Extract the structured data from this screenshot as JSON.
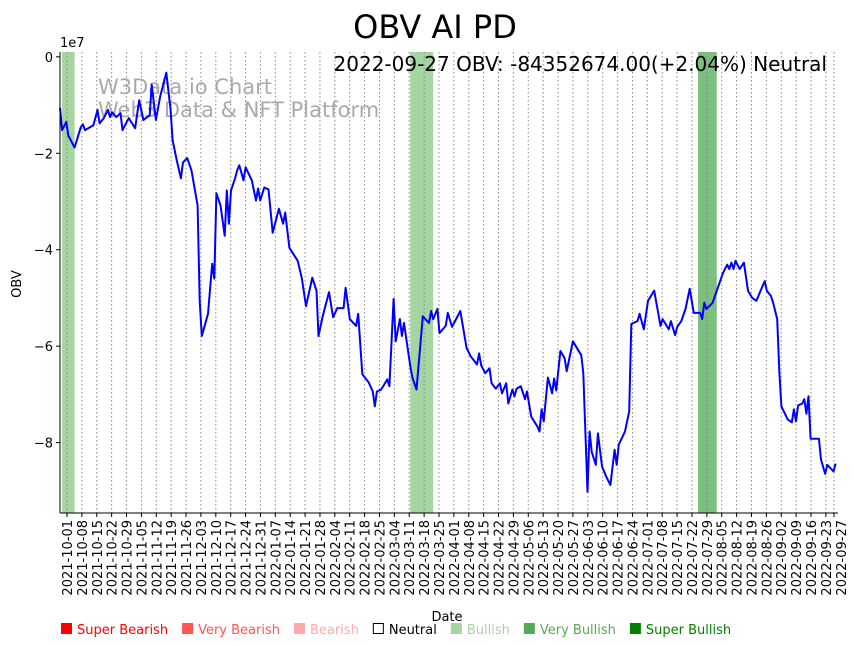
{
  "chart_data": {
    "type": "line",
    "title": "OBV AI PD",
    "annotation": "2022-09-27 OBV: -84352674.00(+2.04%) Neutral",
    "watermark": [
      "W3Data.io Chart",
      "Web3 Data & NFT Platform"
    ],
    "xlabel": "Date",
    "ylabel": "OBV",
    "y_multiplier_label": "1e7",
    "y_unit": "1e7",
    "ylim": [
      -9.46,
      0.1
    ],
    "xlim_days": [
      0,
      372
    ],
    "grid": "vertical dotted",
    "x_start_note": "x values are days from series start (~2021-09-27)",
    "yticks": [
      {
        "value": 0,
        "label": "0"
      },
      {
        "value": -2,
        "label": "−2"
      },
      {
        "value": -4,
        "label": "−4"
      },
      {
        "value": -6,
        "label": "−6"
      },
      {
        "value": -8,
        "label": "−8"
      }
    ],
    "xticks": [
      "2021-10-01",
      "2021-10-08",
      "2021-10-15",
      "2021-10-22",
      "2021-10-29",
      "2021-11-05",
      "2021-11-12",
      "2021-11-19",
      "2021-11-26",
      "2021-12-03",
      "2021-12-10",
      "2021-12-17",
      "2021-12-24",
      "2021-12-31",
      "2022-01-07",
      "2022-01-14",
      "2022-01-21",
      "2022-01-28",
      "2022-02-04",
      "2022-02-11",
      "2022-02-18",
      "2022-02-25",
      "2022-03-04",
      "2022-03-11",
      "2022-03-18",
      "2022-03-25",
      "2022-04-01",
      "2022-04-08",
      "2022-04-15",
      "2022-04-22",
      "2022-04-29",
      "2022-05-06",
      "2022-05-13",
      "2022-05-20",
      "2022-05-27",
      "2022-06-03",
      "2022-06-10",
      "2022-06-17",
      "2022-06-24",
      "2022-07-01",
      "2022-07-08",
      "2022-07-15",
      "2022-07-22",
      "2022-07-29",
      "2022-08-05",
      "2022-08-12",
      "2022-08-19",
      "2022-08-26",
      "2022-09-02",
      "2022-09-09",
      "2022-09-16",
      "2022-09-23",
      "2022-09-27"
    ],
    "series": [
      {
        "name": "OBV",
        "color": "#0000ff",
        "points": [
          [
            0,
            -1.06
          ],
          [
            1,
            -1.52
          ],
          [
            3,
            -1.35
          ],
          [
            4,
            -1.63
          ],
          [
            7,
            -1.88
          ],
          [
            10,
            -1.46
          ],
          [
            11,
            -1.4
          ],
          [
            12,
            -1.52
          ],
          [
            16,
            -1.42
          ],
          [
            18,
            -1.1
          ],
          [
            19,
            -1.38
          ],
          [
            21,
            -1.27
          ],
          [
            23,
            -1.1
          ],
          [
            24,
            -1.25
          ],
          [
            25,
            -1.15
          ],
          [
            27,
            -1.25
          ],
          [
            29,
            -1.17
          ],
          [
            30,
            -1.52
          ],
          [
            33,
            -1.27
          ],
          [
            36,
            -1.48
          ],
          [
            38,
            -0.9
          ],
          [
            40,
            -1.31
          ],
          [
            43,
            -1.21
          ],
          [
            44,
            -0.58
          ],
          [
            46,
            -1.31
          ],
          [
            48,
            -0.83
          ],
          [
            51,
            -0.33
          ],
          [
            53,
            -1.08
          ],
          [
            54,
            -1.73
          ],
          [
            56,
            -2.15
          ],
          [
            58,
            -2.52
          ],
          [
            59,
            -2.19
          ],
          [
            61,
            -2.1
          ],
          [
            63,
            -2.35
          ],
          [
            66,
            -3.08
          ],
          [
            67,
            -5.06
          ],
          [
            68,
            -5.79
          ],
          [
            71,
            -5.33
          ],
          [
            73,
            -4.29
          ],
          [
            74,
            -4.6
          ],
          [
            75,
            -2.83
          ],
          [
            77,
            -3.08
          ],
          [
            79,
            -3.71
          ],
          [
            80,
            -2.77
          ],
          [
            81,
            -3.46
          ],
          [
            82,
            -2.77
          ],
          [
            84,
            -2.52
          ],
          [
            85,
            -2.35
          ],
          [
            86,
            -2.25
          ],
          [
            88,
            -2.56
          ],
          [
            89,
            -2.29
          ],
          [
            92,
            -2.56
          ],
          [
            94,
            -2.98
          ],
          [
            95,
            -2.73
          ],
          [
            96,
            -2.98
          ],
          [
            98,
            -2.71
          ],
          [
            100,
            -2.75
          ],
          [
            102,
            -3.65
          ],
          [
            105,
            -3.15
          ],
          [
            107,
            -3.46
          ],
          [
            108,
            -3.23
          ],
          [
            110,
            -3.96
          ],
          [
            114,
            -4.23
          ],
          [
            116,
            -4.6
          ],
          [
            118,
            -5.17
          ],
          [
            121,
            -4.58
          ],
          [
            123,
            -4.85
          ],
          [
            124,
            -5.79
          ],
          [
            126,
            -5.38
          ],
          [
            129,
            -4.88
          ],
          [
            131,
            -5.4
          ],
          [
            133,
            -5.21
          ],
          [
            136,
            -5.21
          ],
          [
            137,
            -4.79
          ],
          [
            139,
            -5.44
          ],
          [
            142,
            -5.58
          ],
          [
            143,
            -5.33
          ],
          [
            145,
            -6.58
          ],
          [
            148,
            -6.75
          ],
          [
            150,
            -6.94
          ],
          [
            151,
            -7.25
          ],
          [
            152,
            -6.94
          ],
          [
            154,
            -6.9
          ],
          [
            157,
            -6.69
          ],
          [
            158,
            -6.83
          ],
          [
            160,
            -5.02
          ],
          [
            161,
            -5.9
          ],
          [
            163,
            -5.44
          ],
          [
            164,
            -5.79
          ],
          [
            165,
            -5.52
          ],
          [
            168,
            -6.42
          ],
          [
            169,
            -6.65
          ],
          [
            171,
            -6.9
          ],
          [
            174,
            -5.38
          ],
          [
            177,
            -5.52
          ],
          [
            178,
            -5.27
          ],
          [
            179,
            -5.44
          ],
          [
            181,
            -5.23
          ],
          [
            182,
            -5.73
          ],
          [
            185,
            -5.58
          ],
          [
            186,
            -5.31
          ],
          [
            188,
            -5.6
          ],
          [
            190,
            -5.44
          ],
          [
            192,
            -5.27
          ],
          [
            195,
            -6.04
          ],
          [
            197,
            -6.21
          ],
          [
            200,
            -6.38
          ],
          [
            201,
            -6.15
          ],
          [
            202,
            -6.4
          ],
          [
            204,
            -6.56
          ],
          [
            206,
            -6.46
          ],
          [
            207,
            -6.77
          ],
          [
            209,
            -6.88
          ],
          [
            211,
            -6.77
          ],
          [
            212,
            -6.98
          ],
          [
            214,
            -6.77
          ],
          [
            215,
            -7.19
          ],
          [
            217,
            -6.9
          ],
          [
            218,
            -7.04
          ],
          [
            219,
            -6.88
          ],
          [
            221,
            -6.83
          ],
          [
            223,
            -7.1
          ],
          [
            224,
            -6.94
          ],
          [
            226,
            -7.46
          ],
          [
            229,
            -7.67
          ],
          [
            230,
            -7.77
          ],
          [
            231,
            -7.31
          ],
          [
            232,
            -7.56
          ],
          [
            234,
            -6.65
          ],
          [
            235,
            -6.81
          ],
          [
            236,
            -6.98
          ],
          [
            237,
            -6.67
          ],
          [
            238,
            -6.92
          ],
          [
            240,
            -6.1
          ],
          [
            242,
            -6.25
          ],
          [
            243,
            -6.52
          ],
          [
            246,
            -5.9
          ],
          [
            250,
            -6.19
          ],
          [
            251,
            -6.56
          ],
          [
            253,
            -9.02
          ],
          [
            254,
            -7.77
          ],
          [
            255,
            -8.19
          ],
          [
            257,
            -8.46
          ],
          [
            258,
            -7.81
          ],
          [
            260,
            -8.5
          ],
          [
            262,
            -8.71
          ],
          [
            264,
            -8.88
          ],
          [
            266,
            -8.15
          ],
          [
            267,
            -8.46
          ],
          [
            268,
            -8.04
          ],
          [
            271,
            -7.77
          ],
          [
            273,
            -7.35
          ],
          [
            274,
            -5.54
          ],
          [
            277,
            -5.48
          ],
          [
            278,
            -5.33
          ],
          [
            280,
            -5.65
          ],
          [
            282,
            -5.06
          ],
          [
            285,
            -4.85
          ],
          [
            288,
            -5.58
          ],
          [
            289,
            -5.44
          ],
          [
            292,
            -5.65
          ],
          [
            293,
            -5.48
          ],
          [
            295,
            -5.77
          ],
          [
            296,
            -5.6
          ],
          [
            298,
            -5.48
          ],
          [
            300,
            -5.23
          ],
          [
            302,
            -4.81
          ],
          [
            304,
            -5.31
          ],
          [
            307,
            -5.31
          ],
          [
            308,
            -5.44
          ],
          [
            309,
            -5.1
          ],
          [
            310,
            -5.23
          ],
          [
            313,
            -5.1
          ],
          [
            315,
            -4.85
          ],
          [
            318,
            -4.48
          ],
          [
            320,
            -4.31
          ],
          [
            321,
            -4.4
          ],
          [
            322,
            -4.27
          ],
          [
            323,
            -4.4
          ],
          [
            324,
            -4.23
          ],
          [
            326,
            -4.4
          ],
          [
            328,
            -4.27
          ],
          [
            330,
            -4.85
          ],
          [
            332,
            -5.0
          ],
          [
            334,
            -5.06
          ],
          [
            336,
            -4.85
          ],
          [
            338,
            -4.65
          ],
          [
            339,
            -4.85
          ],
          [
            341,
            -4.96
          ],
          [
            342,
            -5.1
          ],
          [
            344,
            -5.44
          ],
          [
            345,
            -6.52
          ],
          [
            346,
            -7.25
          ],
          [
            349,
            -7.52
          ],
          [
            351,
            -7.58
          ],
          [
            352,
            -7.31
          ],
          [
            353,
            -7.56
          ],
          [
            354,
            -7.23
          ],
          [
            356,
            -7.19
          ],
          [
            357,
            -7.1
          ],
          [
            358,
            -7.4
          ],
          [
            359,
            -7.04
          ],
          [
            360,
            -7.92
          ],
          [
            364,
            -7.92
          ],
          [
            365,
            -8.35
          ],
          [
            367,
            -8.65
          ],
          [
            368,
            -8.46
          ],
          [
            371,
            -8.6
          ],
          [
            372,
            -8.435
          ]
        ]
      }
    ],
    "signal_bands": [
      {
        "label": "Bullish",
        "from_day": 1,
        "to_day": 7,
        "color": "#a5d5a0"
      },
      {
        "label": "Bullish",
        "from_day": 168,
        "to_day": 179,
        "color": "#a5d5a0"
      },
      {
        "label": "Very Bullish",
        "from_day": 306,
        "to_day": 315,
        "color": "#7dbf7d"
      }
    ],
    "legend": [
      {
        "label": "Super Bearish",
        "color": "#ff0000",
        "filled": true
      },
      {
        "label": "Very Bearish",
        "color": "#ff5555",
        "filled": true
      },
      {
        "label": "Bearish",
        "color": "#ffaaaa",
        "filled": true
      },
      {
        "label": "Neutral",
        "color": "#000000",
        "filled": false
      },
      {
        "label": "Bullish",
        "color": "#a5d5a0",
        "filled": true
      },
      {
        "label": "Very Bullish",
        "color": "#55aa55",
        "filled": true
      },
      {
        "label": "Super Bullish",
        "color": "#008000",
        "filled": true
      }
    ],
    "legend_position": "bottom"
  }
}
